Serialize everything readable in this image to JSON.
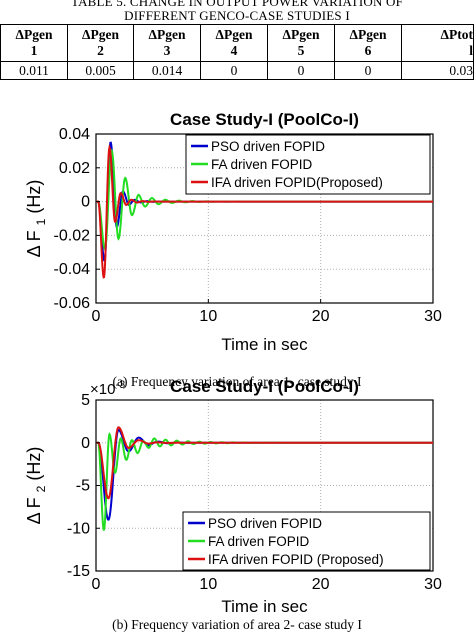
{
  "table": {
    "caption_line1": "TABLE 5. CHANGE IN OUTPUT POWER VARIATION OF",
    "caption_line2": "DIFFERENT GENCO-CASE STUDIES I",
    "headers": [
      [
        "ΔPgen",
        "1"
      ],
      [
        "ΔPgen",
        "2"
      ],
      [
        "ΔPgen",
        "3"
      ],
      [
        "ΔPgen",
        "4"
      ],
      [
        "ΔPgen",
        "5"
      ],
      [
        "ΔPgen",
        "6"
      ],
      [
        "ΔPtot",
        "l"
      ]
    ],
    "values": [
      "0.011",
      "0.005",
      "0.014",
      "0",
      "0",
      "0",
      "0.03"
    ]
  },
  "chart_data": [
    {
      "type": "line",
      "title": "Case Study-I (PoolCo-I)",
      "xlabel": "Time in sec",
      "ylabel_main": "Δ F",
      "ylabel_sub": "1",
      "ylabel_unit": "(Hz)",
      "xlim": [
        0,
        30
      ],
      "ylim": [
        -0.06,
        0.04
      ],
      "xticks": [
        0,
        10,
        20,
        30
      ],
      "yticks": [
        0.04,
        0.02,
        0,
        -0.02,
        -0.04,
        -0.06
      ],
      "ytick_labels": [
        "0.04",
        "0.02",
        "0",
        "-0.02",
        "-0.04",
        "-0.06"
      ],
      "xtick_labels": [
        "0",
        "10",
        "20",
        "30"
      ],
      "grid": true,
      "legend_position": "top-right",
      "series": [
        {
          "name": "PSO driven FOPID",
          "color": "#0000cc",
          "amp": [
            0,
            -0.035,
            0.035,
            -0.015,
            0.006,
            -0.002
          ],
          "period": 1.1,
          "decay": 1.25,
          "start": 0.2
        },
        {
          "name": "FA driven FOPID",
          "color": "#22dd22",
          "amp": [
            0,
            -0.028,
            0.03,
            -0.022,
            0.014,
            -0.008,
            0.004
          ],
          "period": 1.2,
          "decay": 0.55,
          "start": 0.2
        },
        {
          "name": "IFA driven FOPID(Proposed)",
          "color": "#dd1111",
          "amp": [
            0,
            -0.045,
            0.032,
            -0.012,
            0.005,
            -0.002
          ],
          "period": 1.0,
          "decay": 1.3,
          "start": 0.2
        }
      ]
    },
    {
      "type": "line",
      "title": "Case Study-I (PoolCo-I)",
      "xlabel": "Time in sec",
      "ylabel_main": "Δ F",
      "ylabel_sub": "2",
      "ylabel_unit": "(Hz)",
      "exponent_label": "×10",
      "exponent_power": "-3",
      "xlim": [
        0,
        30
      ],
      "ylim": [
        -15,
        5
      ],
      "xticks": [
        0,
        10,
        20,
        30
      ],
      "yticks": [
        5,
        0,
        -5,
        -10,
        -15
      ],
      "ytick_labels": [
        "5",
        "0",
        "-5",
        "-10",
        "-15"
      ],
      "xtick_labels": [
        "0",
        "10",
        "20",
        "30"
      ],
      "grid": true,
      "legend_position": "bottom-right",
      "series": [
        {
          "name": "PSO driven FOPID",
          "color": "#0000cc",
          "amp": [
            0,
            -9,
            1.5,
            -1.0,
            0.6,
            -0.3
          ],
          "period": 1.8,
          "decay": 0.9,
          "start": 0.2
        },
        {
          "name": "FA driven FOPID",
          "color": "#22dd22",
          "amp": [
            0,
            -10.2,
            1.0,
            -3.5,
            0.5,
            -2.0,
            0.3,
            -1.2,
            0.2,
            -0.6
          ],
          "period": 1.0,
          "decay": 0.35,
          "start": 0.2
        },
        {
          "name": "IFA driven FOPID (Proposed)",
          "color": "#dd1111",
          "amp": [
            0,
            -6.5,
            1.8,
            -0.6,
            0.3,
            -0.1
          ],
          "period": 1.8,
          "decay": 1.0,
          "start": 0.2
        }
      ]
    }
  ],
  "captions": {
    "fig_a": "(a) Frequency variation of area 1- case study I",
    "fig_b": "(b) Frequency variation of area 2- case study I"
  }
}
